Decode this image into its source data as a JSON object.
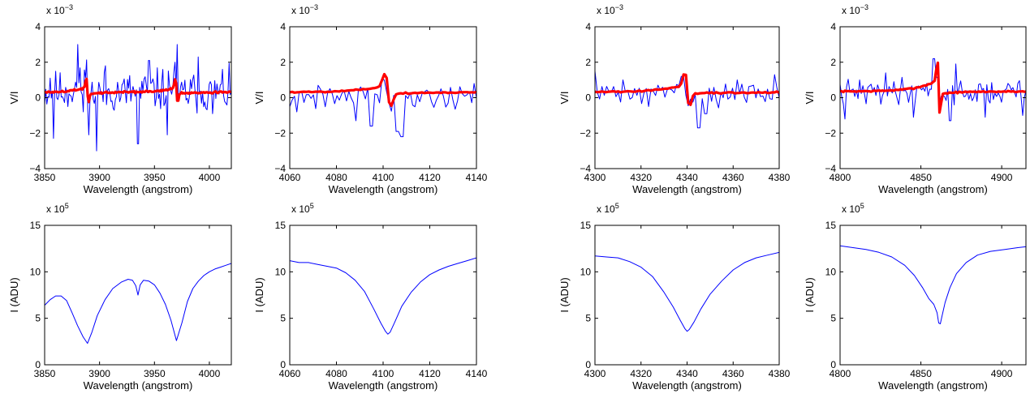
{
  "figure": {
    "title": ""
  },
  "chart_data": [
    {
      "type": "line",
      "panel": "V/I 1",
      "xlabel": "Wavelength (angstrom)",
      "ylabel": "V/I",
      "exponent": {
        "base": "x 10",
        "power": "-3"
      },
      "xlim": [
        3850,
        4020
      ],
      "ylim": [
        -4,
        4
      ],
      "xticks": [
        3850,
        3900,
        3950,
        4000
      ],
      "yticks": [
        -4,
        -2,
        0,
        2,
        4
      ],
      "series": [
        {
          "name": "",
          "color": "#0000ff",
          "width": 1,
          "x_range": [
            3850,
            4020
          ],
          "noise_amp": 1.15,
          "baseline": 0.3,
          "n": 170,
          "seed": 11,
          "spikes": [
            [
              3855,
              1.1
            ],
            [
              3858,
              -2.3
            ],
            [
              3880,
              3.0
            ],
            [
              3885,
              -0.8
            ],
            [
              3897,
              -3.0
            ],
            [
              3905,
              1.8
            ],
            [
              3935,
              -2.6
            ],
            [
              3945,
              2.1
            ],
            [
              3962,
              -2.1
            ],
            [
              3971,
              3.0
            ],
            [
              3990,
              2.3
            ],
            [
              4003,
              -0.9
            ],
            [
              4012,
              1.6
            ]
          ],
          "zeeman": [
            [
              3889,
              0.8,
              2.0
            ],
            [
              3970,
              0.9,
              2.0
            ]
          ]
        },
        {
          "name": "",
          "color": "#ff0000",
          "width": 3.2,
          "x_range": [
            3850,
            4020
          ],
          "noise_amp": 0.05,
          "baseline": 0.3,
          "n": 170,
          "seed": 4,
          "spikes": [],
          "zeeman": [
            [
              3889,
              0.55,
              1.5
            ],
            [
              3970,
              0.55,
              1.5
            ]
          ]
        }
      ]
    },
    {
      "type": "line",
      "panel": "V/I 2",
      "xlabel": "Wavelength (angstrom)",
      "ylabel": "V/I",
      "exponent": {
        "base": "x 10",
        "power": "-3"
      },
      "xlim": [
        4060,
        4140
      ],
      "ylim": [
        -4,
        4
      ],
      "xticks": [
        4060,
        4080,
        4100,
        4120,
        4140
      ],
      "yticks": [
        -4,
        -2,
        0,
        2,
        4
      ],
      "series": [
        {
          "name": "",
          "color": "#0000ff",
          "width": 1,
          "x_range": [
            4060,
            4140
          ],
          "noise_amp": 0.7,
          "baseline": 0.1,
          "n": 80,
          "seed": 21,
          "spikes": [
            [
              4063,
              -0.8
            ],
            [
              4072,
              0.7
            ],
            [
              4088,
              -1.3
            ],
            [
              4095,
              -1.6
            ],
            [
              4100,
              1.0
            ],
            [
              4106,
              -1.9
            ],
            [
              4108,
              -2.2
            ],
            [
              4125,
              0.5
            ],
            [
              4139,
              0.8
            ]
          ],
          "zeeman": [
            [
              4102,
              0.4,
              1.6
            ]
          ]
        },
        {
          "name": "",
          "color": "#ff0000",
          "width": 3.2,
          "x_range": [
            4060,
            4140
          ],
          "noise_amp": 0.04,
          "baseline": 0.3,
          "n": 80,
          "seed": 5,
          "spikes": [],
          "zeeman": [
            [
              4102,
              0.75,
              1.8
            ]
          ]
        }
      ]
    },
    {
      "type": "line",
      "panel": "V/I 3",
      "xlabel": "Wavelength (angstrom)",
      "ylabel": "V/I",
      "exponent": {
        "base": "x 10",
        "power": "-3"
      },
      "xlim": [
        4300,
        4380
      ],
      "ylim": [
        -4,
        4
      ],
      "xticks": [
        4300,
        4320,
        4340,
        4360,
        4380
      ],
      "yticks": [
        -4,
        -2,
        0,
        2,
        4
      ],
      "series": [
        {
          "name": "",
          "color": "#0000ff",
          "width": 1,
          "x_range": [
            4300,
            4380
          ],
          "noise_amp": 0.6,
          "baseline": 0.2,
          "n": 80,
          "seed": 31,
          "spikes": [
            [
              4300,
              1.5
            ],
            [
              4312,
              1.0
            ],
            [
              4323,
              -0.5
            ],
            [
              4338,
              1.2
            ],
            [
              4345,
              -1.7
            ],
            [
              4348,
              -0.9
            ],
            [
              4362,
              1.0
            ],
            [
              4378,
              1.3
            ]
          ],
          "zeeman": [
            [
              4340,
              0.5,
              1.4
            ]
          ]
        },
        {
          "name": "",
          "color": "#ff0000",
          "width": 3.2,
          "x_range": [
            4300,
            4380
          ],
          "noise_amp": 0.04,
          "baseline": 0.3,
          "n": 80,
          "seed": 6,
          "spikes": [],
          "zeeman": [
            [
              4340,
              0.8,
              1.5
            ]
          ]
        }
      ]
    },
    {
      "type": "line",
      "panel": "V/I 4",
      "xlabel": "Wavelength (angstrom)",
      "ylabel": "V/I",
      "exponent": {
        "base": "x 10",
        "power": "-3"
      },
      "xlim": [
        4800,
        4915
      ],
      "ylim": [
        -4,
        4
      ],
      "xticks": [
        4800,
        4850,
        4900
      ],
      "yticks": [
        -4,
        -2,
        0,
        2,
        4
      ],
      "series": [
        {
          "name": "",
          "color": "#0000ff",
          "width": 1,
          "x_range": [
            4800,
            4915
          ],
          "noise_amp": 0.7,
          "baseline": 0.3,
          "n": 115,
          "seed": 41,
          "spikes": [
            [
              4803,
              -1.2
            ],
            [
              4812,
              1.0
            ],
            [
              4828,
              1.4
            ],
            [
              4845,
              -1.1
            ],
            [
              4858,
              2.2
            ],
            [
              4868,
              -1.3
            ],
            [
              4872,
              1.9
            ],
            [
              4890,
              -1.1
            ],
            [
              4910,
              0.8
            ],
            [
              4913,
              -1.0
            ]
          ],
          "zeeman": [
            [
              4861,
              0.9,
              1.2
            ]
          ]
        },
        {
          "name": "",
          "color": "#ff0000",
          "width": 3.2,
          "x_range": [
            4800,
            4915
          ],
          "noise_amp": 0.04,
          "baseline": 0.35,
          "n": 115,
          "seed": 7,
          "spikes": [],
          "zeeman": [
            [
              4861,
              1.25,
              1.1
            ]
          ]
        }
      ]
    },
    {
      "type": "line",
      "panel": "I 1",
      "xlabel": "Wavelength (angstrom)",
      "ylabel": "I (ADU)",
      "exponent": {
        "base": "x 10",
        "power": "5"
      },
      "xlim": [
        3850,
        4020
      ],
      "ylim": [
        0,
        15
      ],
      "xticks": [
        3850,
        3900,
        3950,
        4000
      ],
      "yticks": [
        0,
        5,
        10,
        15
      ],
      "series": [
        {
          "name": "",
          "color": "#0000ff",
          "width": 1,
          "x": [
            3850,
            3855,
            3860,
            3865,
            3870,
            3875,
            3880,
            3885,
            3889,
            3893,
            3898,
            3905,
            3912,
            3920,
            3926,
            3930,
            3933,
            3935,
            3937,
            3940,
            3945,
            3950,
            3955,
            3960,
            3965,
            3970,
            3975,
            3980,
            3985,
            3990,
            3995,
            4000,
            4005,
            4010,
            4015,
            4020
          ],
          "y": [
            6.4,
            7.0,
            7.4,
            7.4,
            6.9,
            5.6,
            4.2,
            3.0,
            2.3,
            3.5,
            5.3,
            7.0,
            8.2,
            8.9,
            9.2,
            9.1,
            8.5,
            7.5,
            8.6,
            9.1,
            9.0,
            8.6,
            7.7,
            6.5,
            4.8,
            2.6,
            4.5,
            6.8,
            8.2,
            9.0,
            9.6,
            10.0,
            10.3,
            10.5,
            10.7,
            10.9
          ]
        }
      ]
    },
    {
      "type": "line",
      "panel": "I 2",
      "xlabel": "Wavelength (angstrom)",
      "ylabel": "I (ADU)",
      "exponent": {
        "base": "x 10",
        "power": "5"
      },
      "xlim": [
        4060,
        4140
      ],
      "ylim": [
        0,
        15
      ],
      "xticks": [
        4060,
        4080,
        4100,
        4120,
        4140
      ],
      "yticks": [
        0,
        5,
        10,
        15
      ],
      "series": [
        {
          "name": "",
          "color": "#0000ff",
          "width": 1,
          "x": [
            4060,
            4064,
            4068,
            4072,
            4076,
            4080,
            4084,
            4088,
            4092,
            4096,
            4099,
            4101,
            4102,
            4103,
            4105,
            4108,
            4112,
            4116,
            4120,
            4124,
            4128,
            4132,
            4136,
            4140
          ],
          "y": [
            11.2,
            11.0,
            11.0,
            10.8,
            10.6,
            10.4,
            9.9,
            9.1,
            7.9,
            6.0,
            4.5,
            3.6,
            3.3,
            3.5,
            4.6,
            6.3,
            7.8,
            8.9,
            9.7,
            10.2,
            10.6,
            10.9,
            11.2,
            11.5
          ]
        }
      ]
    },
    {
      "type": "line",
      "panel": "I 3",
      "xlabel": "Wavelength (angstrom)",
      "ylabel": "I (ADU)",
      "exponent": {
        "base": "x 10",
        "power": "5"
      },
      "xlim": [
        4300,
        4380
      ],
      "ylim": [
        0,
        15
      ],
      "xticks": [
        4300,
        4320,
        4340,
        4360,
        4380
      ],
      "yticks": [
        0,
        5,
        10,
        15
      ],
      "series": [
        {
          "name": "",
          "color": "#0000ff",
          "width": 1,
          "x": [
            4300,
            4305,
            4310,
            4315,
            4320,
            4325,
            4330,
            4334,
            4337,
            4339,
            4340,
            4341,
            4343,
            4346,
            4350,
            4355,
            4360,
            4365,
            4370,
            4375,
            4380
          ],
          "y": [
            11.7,
            11.6,
            11.5,
            11.1,
            10.5,
            9.5,
            7.8,
            6.2,
            4.8,
            3.9,
            3.6,
            3.8,
            4.6,
            6.0,
            7.6,
            9.0,
            10.2,
            11.0,
            11.5,
            11.8,
            12.1
          ]
        }
      ]
    },
    {
      "type": "line",
      "panel": "I 4",
      "xlabel": "Wavelength (angstrom)",
      "ylabel": "I (ADU)",
      "exponent": {
        "base": "x 10",
        "power": "5"
      },
      "xlim": [
        4800,
        4915
      ],
      "ylim": [
        0,
        15
      ],
      "xticks": [
        4800,
        4850,
        4900
      ],
      "yticks": [
        0,
        5,
        10,
        15
      ],
      "series": [
        {
          "name": "",
          "color": "#0000ff",
          "width": 1,
          "x": [
            4800,
            4808,
            4816,
            4824,
            4832,
            4840,
            4846,
            4851,
            4855,
            4858,
            4860,
            4861,
            4862,
            4863,
            4865,
            4868,
            4872,
            4878,
            4885,
            4893,
            4902,
            4910,
            4915
          ],
          "y": [
            12.8,
            12.6,
            12.4,
            12.1,
            11.6,
            10.7,
            9.6,
            8.3,
            7.1,
            6.5,
            5.6,
            4.5,
            4.4,
            5.2,
            6.7,
            8.3,
            9.8,
            11.0,
            11.8,
            12.2,
            12.4,
            12.6,
            12.7
          ]
        }
      ]
    }
  ]
}
